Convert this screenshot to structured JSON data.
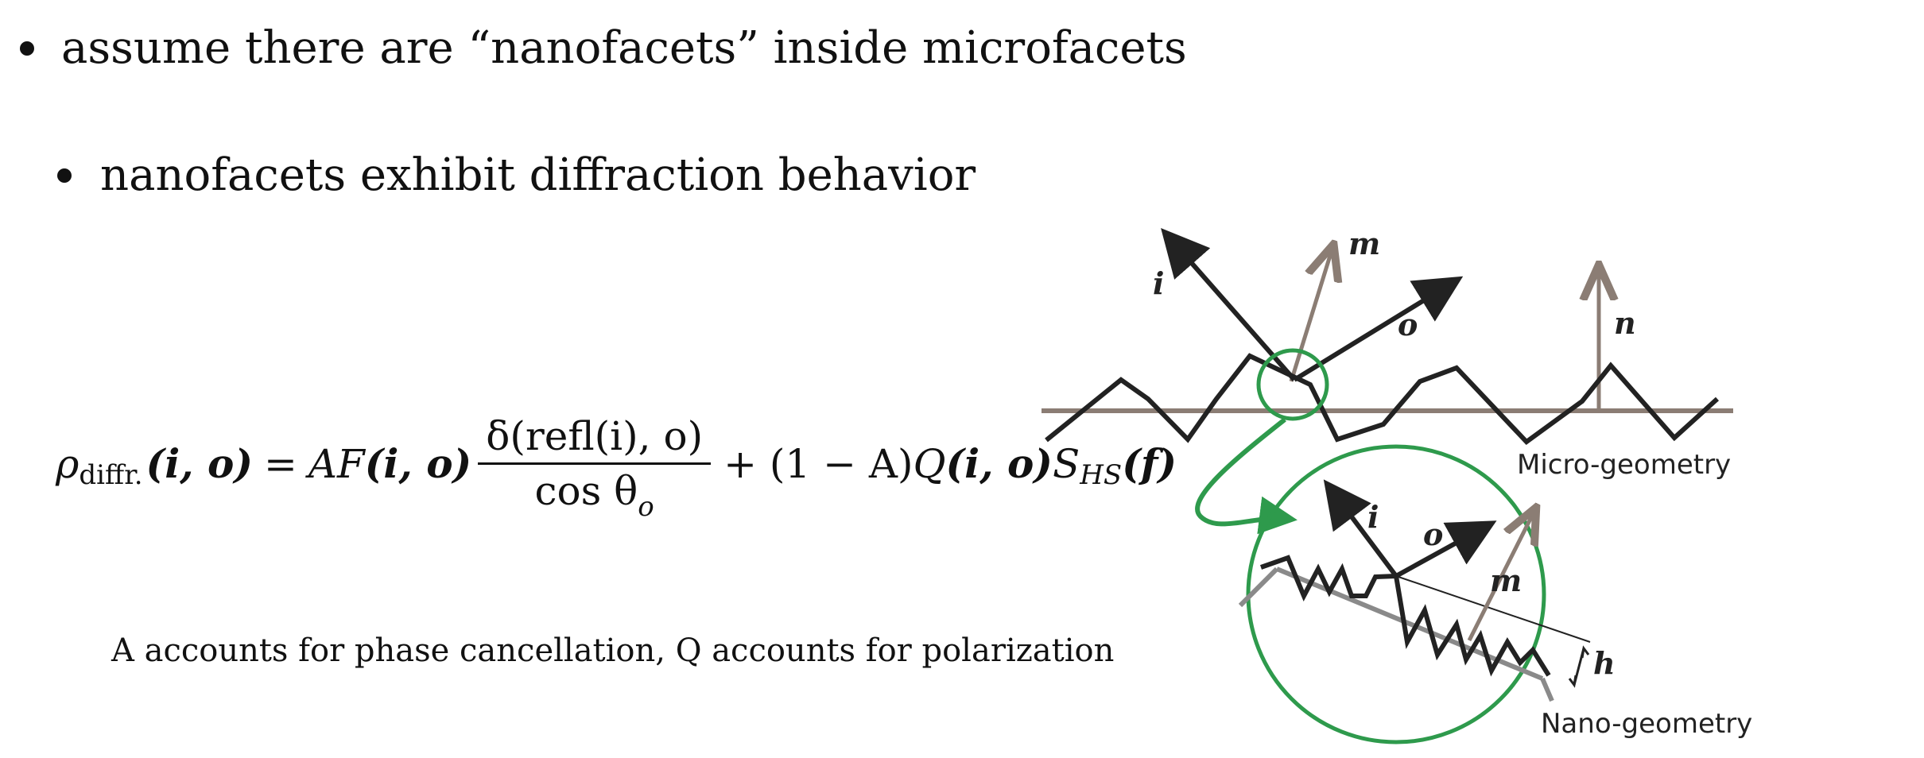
{
  "bullets": [
    "assume there are “nanofacets” inside microfacets",
    "nanofacets exhibit diffraction behavior"
  ],
  "equation": {
    "rho": "ρ",
    "rho_sub": "diffr.",
    "args_lhs": "(i, o)",
    "equals": "=",
    "af_prefix": "AF",
    "af_args": "(i, o)",
    "numerator": "δ(refl(i), o)",
    "denominator_prefix": "cos θ",
    "denominator_sub": "o",
    "plus_term": "+ (1 − A)",
    "q": "Q",
    "q_args": "(i, o)",
    "s": "S",
    "s_sub": "HS",
    "s_args": "(f)"
  },
  "caption": "A accounts for phase cancellation, Q accounts for polarization",
  "diagram": {
    "labels": {
      "i_top": "i",
      "m_top": "m",
      "o_top": "o",
      "n_top": "n",
      "micro": "Micro-geometry",
      "i_zoom": "i",
      "o_zoom": "o",
      "m_zoom": "m",
      "h_zoom": "h",
      "nano": "Nano-geometry"
    },
    "colors": {
      "surface": "#222222",
      "baseline": "#8b7d74",
      "normal": "#8b7d74",
      "highlight": "#2e9a4c",
      "nano_baseline": "#8a8a8a"
    }
  }
}
